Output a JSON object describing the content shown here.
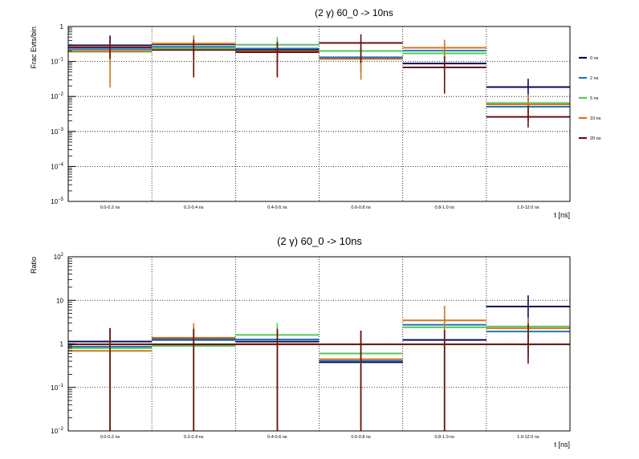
{
  "chart_data": [
    {
      "type": "step",
      "title": "(2 γ) 60_0 -> 10ns",
      "ylabel": "Frac Evts/bin",
      "xlabel": "t [ns]",
      "yscale": "log",
      "ylim": [
        1e-05,
        1
      ],
      "y_ticks": [
        {
          "base": "1",
          "exp": ""
        },
        {
          "base": "10",
          "exp": "−1"
        },
        {
          "base": "10",
          "exp": "−2"
        },
        {
          "base": "10",
          "exp": "−3"
        },
        {
          "base": "10",
          "exp": "−4"
        },
        {
          "base": "10",
          "exp": "−5"
        }
      ],
      "categories": [
        "0.0-0.2 ns",
        "0.2-0.4 ns",
        "0.4-0.6 ns",
        "0.6-0.8 ns",
        "0.8-1.0 ns",
        "1.0-12.0 ns"
      ],
      "grid": true,
      "legend_position": "right",
      "series": [
        {
          "name": "0 ns",
          "color": "#0a0a5a",
          "values": [
            0.28,
            0.3,
            0.21,
            0.12,
            0.085,
            0.018
          ],
          "err_low": [
            0.15,
            0.15,
            0.1,
            0.05,
            0.03,
            0.008
          ],
          "err_high": [
            0.55,
            0.55,
            0.38,
            0.22,
            0.15,
            0.032
          ]
        },
        {
          "name": "2 ns",
          "color": "#2277b8",
          "values": [
            0.22,
            0.26,
            0.23,
            0.13,
            0.2,
            0.005
          ],
          "err_low": [
            0.12,
            0.13,
            0.11,
            0.06,
            0.09,
            0.002
          ],
          "err_high": [
            0.4,
            0.45,
            0.4,
            0.24,
            0.35,
            0.009
          ]
        },
        {
          "name": "5 ns",
          "color": "#5bc45b",
          "values": [
            0.19,
            0.24,
            0.3,
            0.2,
            0.17,
            0.0065
          ],
          "err_low": [
            0.08,
            0.11,
            0.12,
            0.08,
            0.07,
            0.003
          ],
          "err_high": [
            0.35,
            0.4,
            0.5,
            0.35,
            0.3,
            0.011
          ]
        },
        {
          "name": "10 ns",
          "color": "#d2771e",
          "values": [
            0.2,
            0.33,
            0.2,
            0.12,
            0.25,
            0.006
          ],
          "err_low": [
            0.018,
            0.04,
            0.04,
            0.03,
            0.06,
            0.0022
          ],
          "err_high": [
            0.4,
            0.55,
            0.38,
            0.25,
            0.42,
            0.0115
          ]
        },
        {
          "name": "20 ns",
          "color": "#6b0f0f",
          "values": [
            0.26,
            0.22,
            0.19,
            0.35,
            0.07,
            0.0027
          ],
          "err_low": [
            0.12,
            0.035,
            0.035,
            0.09,
            0.012,
            0.0013
          ],
          "err_high": [
            0.48,
            0.42,
            0.36,
            0.6,
            0.14,
            0.0055
          ]
        }
      ]
    },
    {
      "type": "step",
      "title": "(2 γ) 60_0 -> 10ns",
      "ylabel": "Ratio",
      "xlabel": "t [ns]",
      "yscale": "log",
      "ylim": [
        0.01,
        100
      ],
      "y_ticks": [
        {
          "base": "10",
          "exp": "2"
        },
        {
          "base": "10",
          "exp": ""
        },
        {
          "base": "1",
          "exp": ""
        },
        {
          "base": "10",
          "exp": "−1"
        },
        {
          "base": "10",
          "exp": "−2"
        }
      ],
      "categories": [
        "0.0-0.2 ns",
        "0.2-0.4 ns",
        "0.4-0.6 ns",
        "0.6-0.8 ns",
        "0.8-1.0 ns",
        "1.0-12.0 ns"
      ],
      "grid": true,
      "series": [
        {
          "name": "0 ns",
          "color": "#0a0a5a",
          "values": [
            1.1,
            1.3,
            1.1,
            0.37,
            1.2,
            7.0
          ],
          "err_low": [
            0.01,
            0.01,
            0.01,
            0.01,
            0.01,
            1.2
          ],
          "err_high": [
            2.3,
            2.3,
            2.3,
            2.0,
            1.2,
            13
          ]
        },
        {
          "name": "2 ns",
          "color": "#2277b8",
          "values": [
            0.85,
            1.2,
            1.25,
            0.4,
            2.7,
            1.9
          ],
          "err_low": [
            0.01,
            0.01,
            0.01,
            0.01,
            0.01,
            0.5
          ],
          "err_high": [
            2.0,
            2.5,
            2.4,
            1.5,
            4.5,
            3.5
          ]
        },
        {
          "name": "5 ns",
          "color": "#5bc45b",
          "values": [
            0.8,
            0.9,
            1.6,
            0.6,
            2.4,
            2.5
          ],
          "err_low": [
            0.01,
            0.01,
            0.01,
            0.01,
            0.01,
            0.5
          ],
          "err_high": [
            1.8,
            2.5,
            3.0,
            1.5,
            4.0,
            4.0
          ]
        },
        {
          "name": "10 ns",
          "color": "#d2771e",
          "values": [
            0.7,
            1.4,
            1.0,
            0.45,
            3.5,
            2.3
          ],
          "err_low": [
            0.01,
            0.01,
            0.01,
            0.01,
            0.01,
            0.5
          ],
          "err_high": [
            1.8,
            3.0,
            2.2,
            1.7,
            7.5,
            3.8
          ]
        },
        {
          "name": "20 ns",
          "color": "#6b0f0f",
          "values": [
            1.0,
            1.0,
            1.0,
            1.0,
            1.0,
            1.0
          ],
          "err_low": [
            0.01,
            0.01,
            0.01,
            0.01,
            0.01,
            0.35
          ],
          "err_high": [
            2.3,
            2.2,
            2.2,
            2.0,
            2.1,
            2.9
          ]
        }
      ]
    }
  ]
}
